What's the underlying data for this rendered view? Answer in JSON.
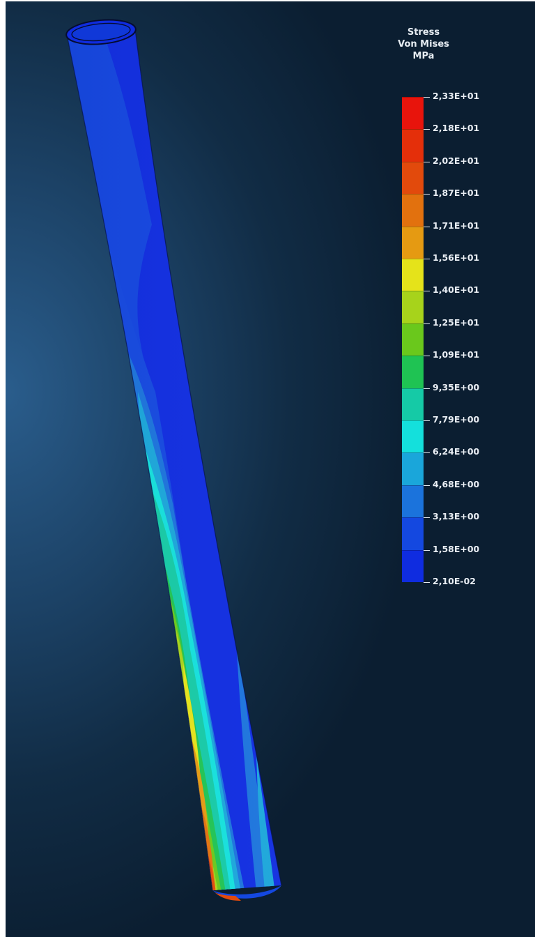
{
  "legend": {
    "title_lines": [
      "Stress",
      "Von Mises",
      "MPa"
    ],
    "tick_labels": [
      "2,33E+01",
      "2,18E+01",
      "2,02E+01",
      "1,87E+01",
      "1,71E+01",
      "1,56E+01",
      "1,40E+01",
      "1,25E+01",
      "1,09E+01",
      "9,35E+00",
      "7,79E+00",
      "6,24E+00",
      "4,68E+00",
      "3,13E+00",
      "1,58E+00",
      "2,10E-02"
    ],
    "band_colors": [
      "#e8140c",
      "#e42f0a",
      "#e24a0c",
      "#e2710e",
      "#e59a12",
      "#e5e31a",
      "#a7d31b",
      "#6ac81c",
      "#1fc353",
      "#15caa6",
      "#14e0dc",
      "#1aa6da",
      "#1b73dc",
      "#1448e0",
      "#0f2ce0"
    ]
  },
  "colors": {
    "background_dark": "#0b1e31",
    "background_light": "#2a5d8c",
    "text": "#e9eef4"
  }
}
